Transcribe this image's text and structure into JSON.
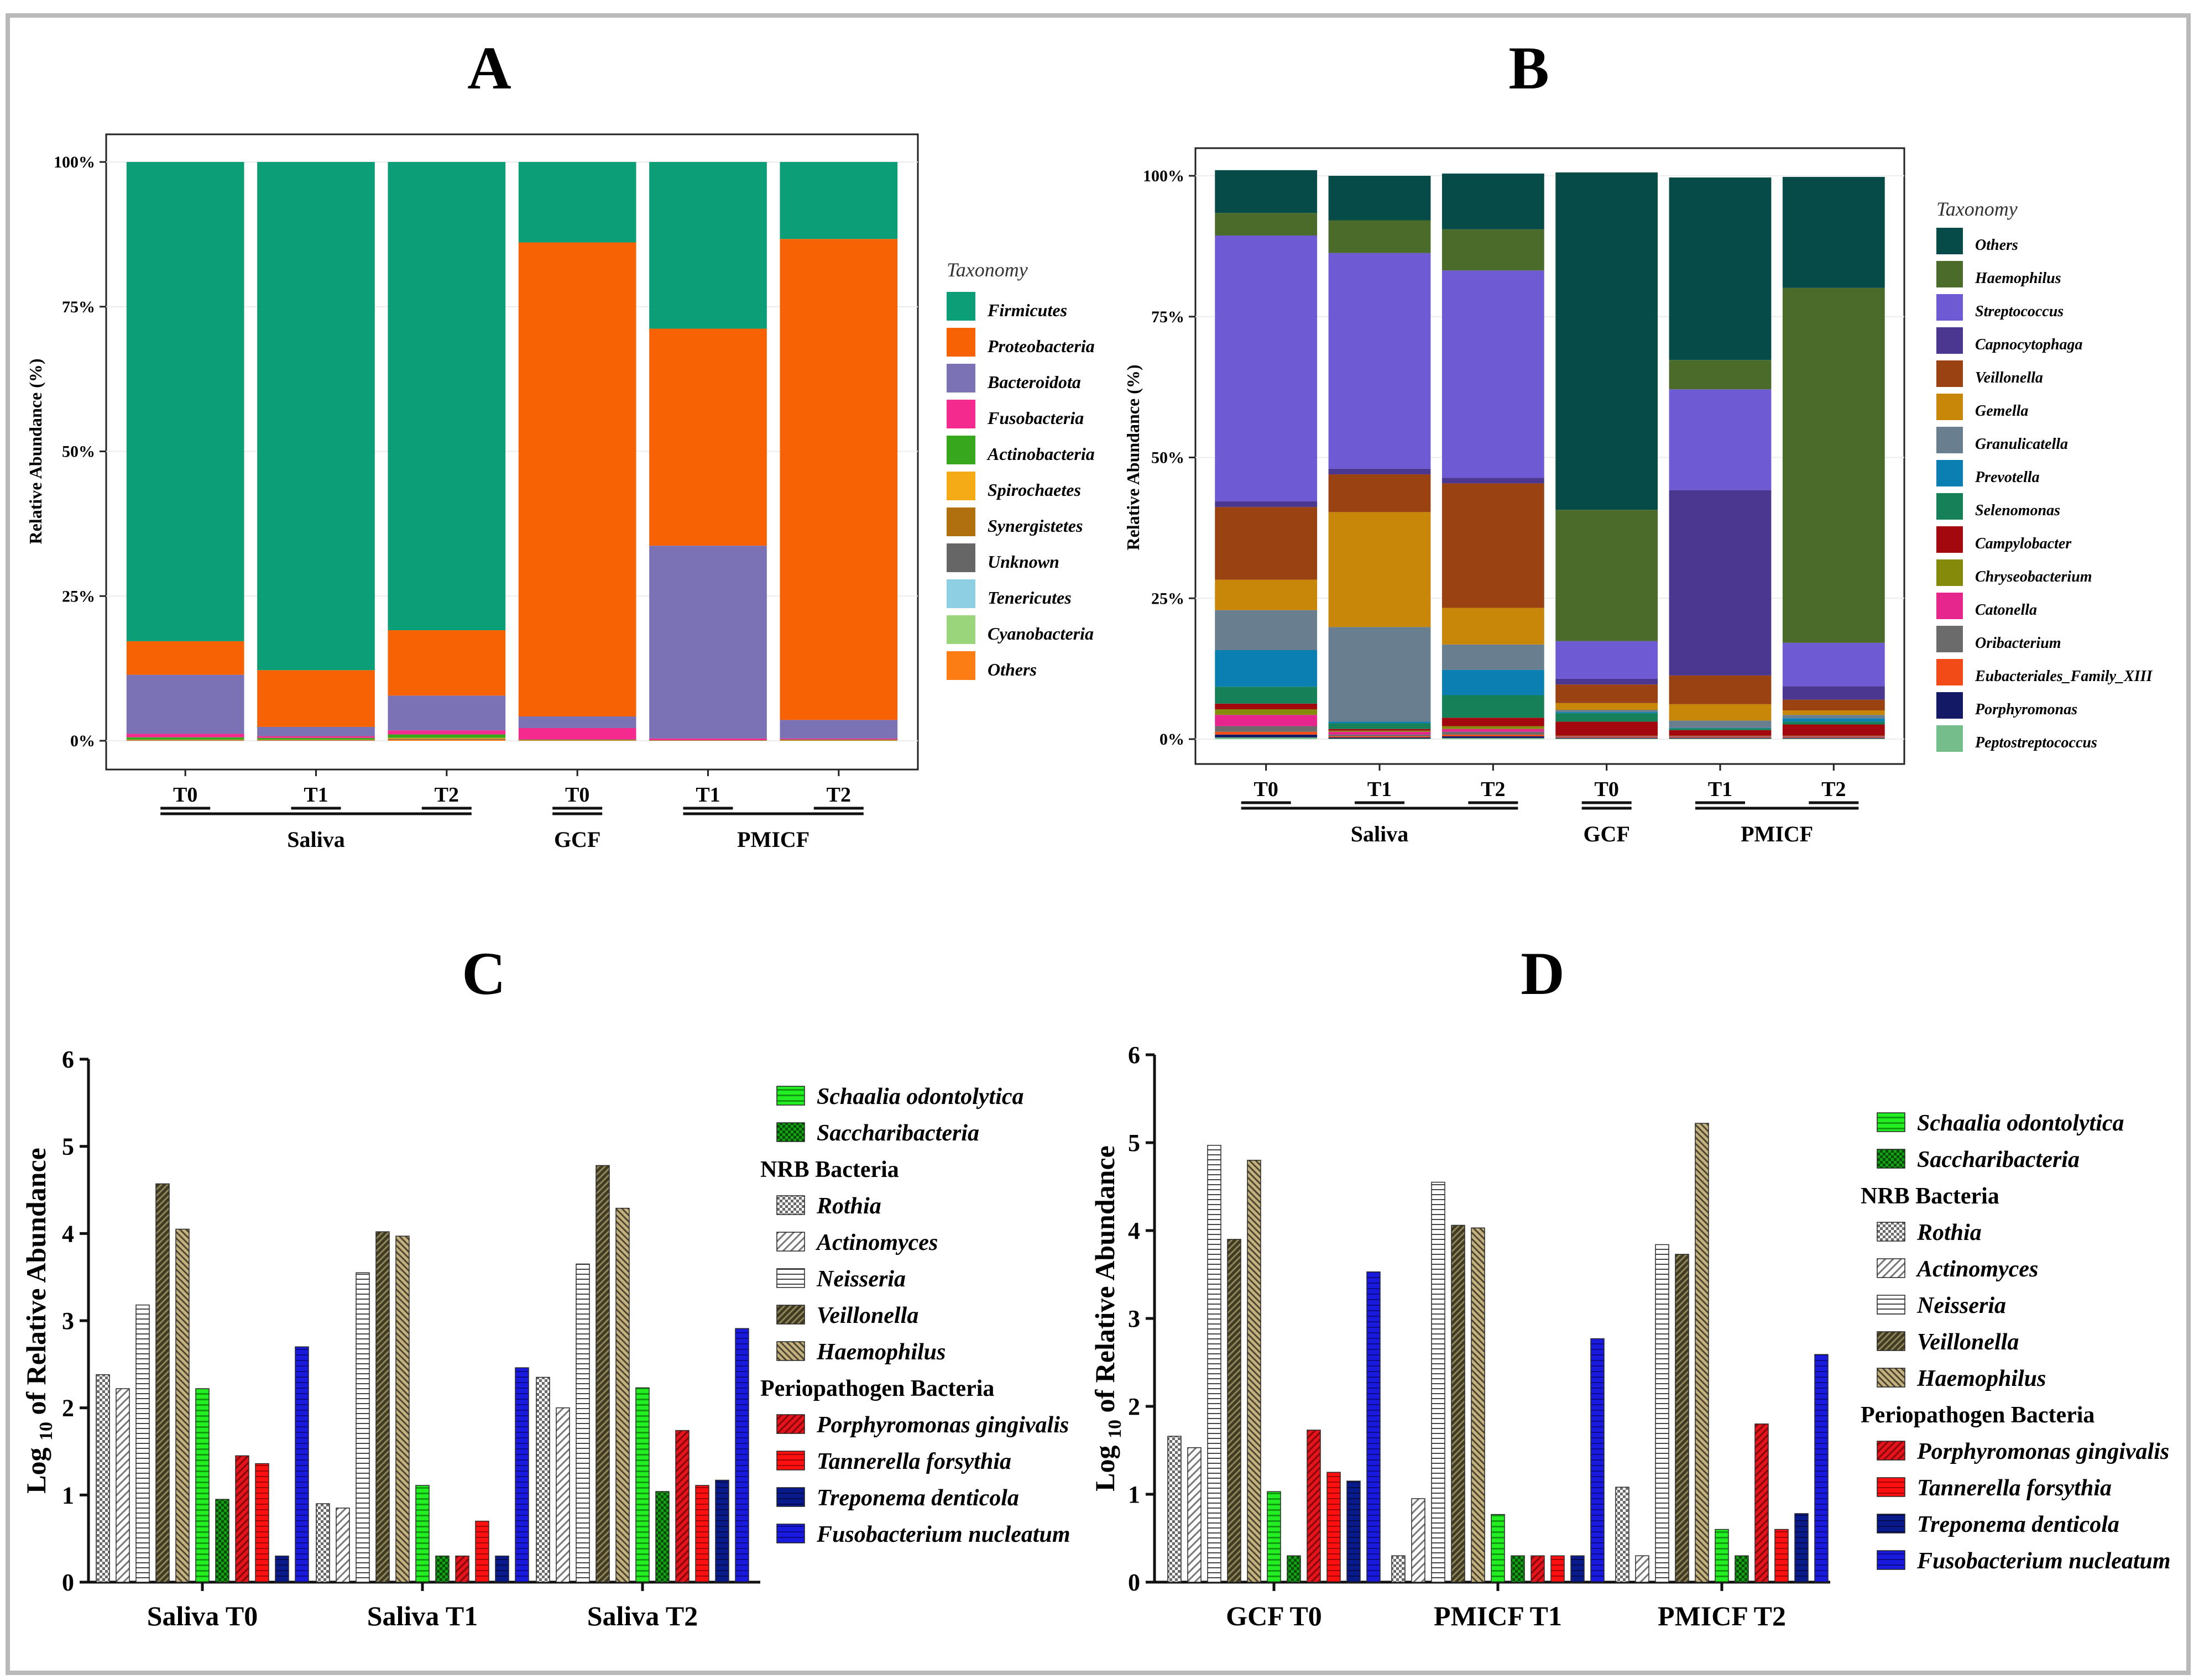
{
  "chart_data": [
    {
      "panel": "A",
      "type": "stacked-bar",
      "title": "A",
      "ylabel": "Relative Abundance (%)",
      "xlabel": "",
      "ylim": [
        0,
        100
      ],
      "yticks": [
        "0%",
        "25%",
        "50%",
        "75%",
        "100%"
      ],
      "categories": [
        "T0",
        "T1",
        "T2",
        "T0",
        "T1",
        "T2"
      ],
      "groups": [
        {
          "label": "Saliva",
          "from": 0,
          "to": 2
        },
        {
          "label": "GCF",
          "from": 3,
          "to": 3
        },
        {
          "label": "PMICF",
          "from": 4,
          "to": 5
        }
      ],
      "legend_title": "Taxonomy",
      "legend": [
        "Firmicutes",
        "Proteobacteria",
        "Bacteroidota",
        "Fusobacteria",
        "Actinobacteria",
        "Spirochaetes",
        "Synergistetes",
        "Unknown",
        "Tenericutes",
        "Cyanobacteria",
        "Others"
      ],
      "colors": [
        "#0b9e77",
        "#f76304",
        "#7b71b5",
        "#f42a8f",
        "#37a81d",
        "#f5ab16",
        "#b0700f",
        "#666666",
        "#8ecfe4",
        "#9ad57c",
        "#fb7d13"
      ],
      "stack_order": [
        "Others",
        "Cyanobacteria",
        "Tenericutes",
        "Unknown",
        "Synergistetes",
        "Spirochaetes",
        "Actinobacteria",
        "Fusobacteria",
        "Bacteroidota",
        "Proteobacteria",
        "Firmicutes"
      ],
      "series": [
        {
          "name": "Firmicutes",
          "values": [
            82.8,
            87.8,
            80.9,
            13.9,
            28.8,
            13.3
          ]
        },
        {
          "name": "Proteobacteria",
          "values": [
            5.8,
            9.8,
            11.3,
            81.9,
            37.5,
            83.1
          ]
        },
        {
          "name": "Bacteroidota",
          "values": [
            10.2,
            1.6,
            6.0,
            2.0,
            33.3,
            3.2
          ]
        },
        {
          "name": "Fusobacteria",
          "values": [
            0.6,
            0.3,
            0.7,
            2.0,
            0.3,
            0.2
          ]
        },
        {
          "name": "Actinobacteria",
          "values": [
            0.4,
            0.3,
            0.6,
            0.1,
            0.05,
            0.1
          ]
        },
        {
          "name": "Spirochaetes",
          "values": [
            0.05,
            0.05,
            0.1,
            0.0,
            0.0,
            0.0
          ]
        },
        {
          "name": "Synergistetes",
          "values": [
            0.05,
            0.05,
            0.1,
            0.0,
            0.0,
            0.0
          ]
        },
        {
          "name": "Unknown",
          "values": [
            0.05,
            0.05,
            0.1,
            0.0,
            0.0,
            0.0
          ]
        },
        {
          "name": "Tenericutes",
          "values": [
            0.0,
            0.0,
            0.0,
            0.0,
            0.0,
            0.0
          ]
        },
        {
          "name": "Cyanobacteria",
          "values": [
            0.0,
            0.0,
            0.0,
            0.0,
            0.0,
            0.0
          ]
        },
        {
          "name": "Others",
          "values": [
            0.05,
            0.05,
            0.2,
            0.1,
            0.05,
            0.1
          ]
        }
      ]
    },
    {
      "panel": "B",
      "type": "stacked-bar",
      "title": "B",
      "ylabel": "Relative Abundance (%)",
      "xlabel": "",
      "ylim": [
        0,
        100
      ],
      "yticks": [
        "0%",
        "25%",
        "50%",
        "75%",
        "100%"
      ],
      "categories": [
        "T0",
        "T1",
        "T2",
        "T0",
        "T1",
        "T2"
      ],
      "groups": [
        {
          "label": "Saliva",
          "from": 0,
          "to": 2
        },
        {
          "label": "GCF",
          "from": 3,
          "to": 3
        },
        {
          "label": "PMICF",
          "from": 4,
          "to": 5
        }
      ],
      "legend_title": "Taxonomy",
      "legend": [
        "Others",
        "Haemophilus",
        "Streptococcus",
        "Capnocytophaga",
        "Veillonella",
        "Gemella",
        "Granulicatella",
        "Prevotella",
        "Selenomonas",
        "Campylobacter",
        "Chryseobacterium",
        "Catonella",
        "Oribacterium",
        "Eubacteriales_Family_XIII",
        "Porphyromonas",
        "Peptostreptococcus"
      ],
      "colors": [
        "#064b47",
        "#4b6b2a",
        "#6e5bd4",
        "#4b3790",
        "#9a4212",
        "#c9870a",
        "#697e8f",
        "#0b7fb1",
        "#168158",
        "#a4080f",
        "#868a0a",
        "#e6268d",
        "#6b6b6b",
        "#f24b17",
        "#141965",
        "#75bd8a"
      ],
      "stack_order": [
        "Peptostreptococcus",
        "Porphyromonas",
        "Eubacteriales_Family_XIII",
        "Oribacterium",
        "Catonella",
        "Chryseobacterium",
        "Campylobacter",
        "Selenomonas",
        "Prevotella",
        "Granulicatella",
        "Gemella",
        "Veillonella",
        "Capnocytophaga",
        "Streptococcus",
        "Haemophilus",
        "Others"
      ],
      "series": [
        {
          "name": "Others",
          "values": [
            7.6,
            7.9,
            9.9,
            59.9,
            32.4,
            19.7
          ]
        },
        {
          "name": "Haemophilus",
          "values": [
            4.0,
            5.8,
            7.3,
            23.3,
            5.2,
            63.0
          ]
        },
        {
          "name": "Streptococcus",
          "values": [
            47.2,
            38.3,
            36.8,
            6.7,
            17.9,
            7.7
          ]
        },
        {
          "name": "Capnocytophaga",
          "values": [
            1.0,
            1.0,
            1.0,
            1.0,
            32.9,
            2.4
          ]
        },
        {
          "name": "Veillonella",
          "values": [
            12.9,
            6.7,
            22.1,
            3.3,
            5.1,
            1.9
          ]
        },
        {
          "name": "Gemella",
          "values": [
            5.4,
            20.4,
            6.5,
            1.2,
            2.9,
            0.8
          ]
        },
        {
          "name": "Granulicatella",
          "values": [
            7.1,
            16.8,
            4.5,
            0.4,
            1.3,
            0.6
          ]
        },
        {
          "name": "Prevotella",
          "values": [
            6.5,
            0.3,
            4.5,
            0.2,
            0.1,
            0.6
          ]
        },
        {
          "name": "Selenomonas",
          "values": [
            3.0,
            1.0,
            4.0,
            1.5,
            0.3,
            0.5
          ]
        },
        {
          "name": "Campylobacter",
          "values": [
            1.0,
            0.3,
            1.5,
            2.5,
            1.0,
            2.0
          ]
        },
        {
          "name": "Chryseobacterium",
          "values": [
            1.0,
            0.2,
            0.5,
            0.1,
            0.1,
            0.1
          ]
        },
        {
          "name": "Catonella",
          "values": [
            2.0,
            0.5,
            0.5,
            0.1,
            0.1,
            0.1
          ]
        },
        {
          "name": "Oribacterium",
          "values": [
            1.0,
            0.3,
            0.5,
            0.1,
            0.1,
            0.1
          ]
        },
        {
          "name": "Eubacteriales_Family_XIII",
          "values": [
            0.5,
            0.2,
            0.3,
            0.1,
            0.1,
            0.1
          ]
        },
        {
          "name": "Porphyromonas",
          "values": [
            0.5,
            0.2,
            0.3,
            0.1,
            0.1,
            0.1
          ]
        },
        {
          "name": "Peptostreptococcus",
          "values": [
            0.3,
            0.1,
            0.2,
            0.1,
            0.1,
            0.1
          ]
        }
      ]
    },
    {
      "panel": "C",
      "type": "bar",
      "title": "C",
      "ylabel": "Log 10 of Relative Abundance",
      "ylabel_parts": [
        "Log ",
        "10",
        " of Relative Abundance"
      ],
      "xlabel": "",
      "ylim": [
        0,
        6
      ],
      "yticks": [
        "0",
        "1",
        "2",
        "3",
        "4",
        "5",
        "6"
      ],
      "categories": [
        "Saliva T0",
        "Saliva T1",
        "Saliva T2"
      ],
      "legend_sections": [
        {
          "title": "",
          "items": [
            "Schaalia odontolytica",
            "Saccharibacteria"
          ]
        },
        {
          "title": "NRB Bacteria",
          "items": [
            "Rothia",
            "Actinomyces",
            "Neisseria",
            "Veillonella",
            "Haemophilus"
          ]
        },
        {
          "title": "Periopathogen Bacteria",
          "items": [
            "Porphyromonas gingivalis",
            "Tannerella forsythia",
            "Treponema denticola",
            "Fusobacterium nucleatum"
          ]
        }
      ],
      "bar_order": [
        "Rothia",
        "Actinomyces",
        "Neisseria",
        "Veillonella",
        "Haemophilus",
        "Schaalia odontolytica",
        "Saccharibacteria",
        "Porphyromonas gingivalis",
        "Tannerella forsythia",
        "Treponema denticola",
        "Fusobacterium nucleatum"
      ],
      "series": [
        {
          "name": "Rothia",
          "values": [
            2.38,
            0.9,
            2.35
          ]
        },
        {
          "name": "Actinomyces",
          "values": [
            2.22,
            0.85,
            2.0
          ]
        },
        {
          "name": "Neisseria",
          "values": [
            3.18,
            3.55,
            3.65
          ]
        },
        {
          "name": "Veillonella",
          "values": [
            4.57,
            4.02,
            4.78
          ]
        },
        {
          "name": "Haemophilus",
          "values": [
            4.05,
            3.97,
            4.29
          ]
        },
        {
          "name": "Schaalia odontolytica",
          "values": [
            2.22,
            1.11,
            2.23
          ]
        },
        {
          "name": "Saccharibacteria",
          "values": [
            0.95,
            0.3,
            1.04
          ]
        },
        {
          "name": "Porphyromonas gingivalis",
          "values": [
            1.45,
            0.3,
            1.74
          ]
        },
        {
          "name": "Tannerella forsythia",
          "values": [
            1.36,
            0.7,
            1.11
          ]
        },
        {
          "name": "Treponema denticola",
          "values": [
            0.3,
            0.3,
            1.17
          ]
        },
        {
          "name": "Fusobacterium nucleatum",
          "values": [
            2.7,
            2.46,
            2.91
          ]
        }
      ]
    },
    {
      "panel": "D",
      "type": "bar",
      "title": "D",
      "ylabel": "Log 10 of Relative Abundance",
      "ylabel_parts": [
        "Log ",
        "10",
        " of Relative Abundance"
      ],
      "xlabel": "",
      "ylim": [
        0,
        6
      ],
      "yticks": [
        "0",
        "1",
        "2",
        "3",
        "4",
        "5",
        "6"
      ],
      "categories": [
        "GCF T0",
        "PMICF T1",
        "PMICF T2"
      ],
      "legend_sections": [
        {
          "title": "",
          "items": [
            "Schaalia odontolytica",
            "Saccharibacteria"
          ]
        },
        {
          "title": "NRB Bacteria",
          "items": [
            "Rothia",
            "Actinomyces",
            "Neisseria",
            "Veillonella",
            "Haemophilus"
          ]
        },
        {
          "title": "Periopathogen Bacteria",
          "items": [
            "Porphyromonas gingivalis",
            "Tannerella forsythia",
            "Treponema denticola",
            "Fusobacterium nucleatum"
          ]
        }
      ],
      "bar_order": [
        "Rothia",
        "Actinomyces",
        "Neisseria",
        "Veillonella",
        "Haemophilus",
        "Schaalia odontolytica",
        "Saccharibacteria",
        "Porphyromonas gingivalis",
        "Tannerella forsythia",
        "Treponema denticola",
        "Fusobacterium nucleatum"
      ],
      "series": [
        {
          "name": "Rothia",
          "values": [
            1.66,
            0.3,
            1.08
          ]
        },
        {
          "name": "Actinomyces",
          "values": [
            1.53,
            0.95,
            0.3
          ]
        },
        {
          "name": "Neisseria",
          "values": [
            4.97,
            4.55,
            3.84
          ]
        },
        {
          "name": "Veillonella",
          "values": [
            3.9,
            4.06,
            3.73
          ]
        },
        {
          "name": "Haemophilus",
          "values": [
            4.8,
            4.03,
            5.22
          ]
        },
        {
          "name": "Schaalia odontolytica",
          "values": [
            1.03,
            0.77,
            0.6
          ]
        },
        {
          "name": "Saccharibacteria",
          "values": [
            0.3,
            0.3,
            0.3
          ]
        },
        {
          "name": "Porphyromonas gingivalis",
          "values": [
            1.73,
            0.3,
            1.8
          ]
        },
        {
          "name": "Tannerella forsythia",
          "values": [
            1.25,
            0.3,
            0.6
          ]
        },
        {
          "name": "Treponema denticola",
          "values": [
            1.15,
            0.3,
            0.78
          ]
        },
        {
          "name": "Fusobacterium nucleatum",
          "values": [
            3.53,
            2.77,
            2.59
          ]
        }
      ]
    }
  ]
}
